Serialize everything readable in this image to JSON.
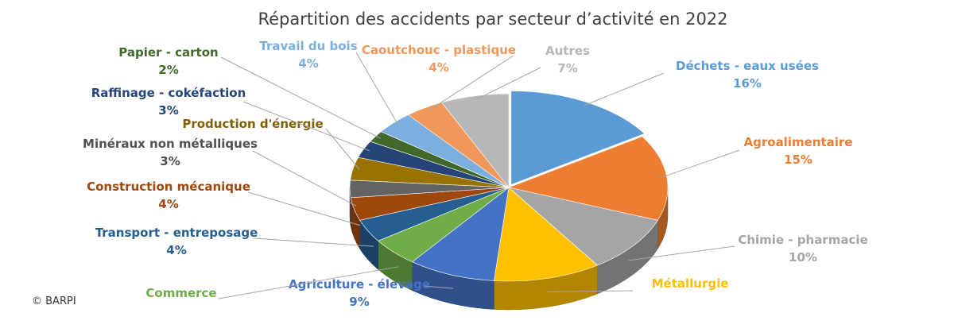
{
  "copyright": "© BARPI",
  "chart_data": {
    "type": "pie",
    "title": "Répartition des accidents par secteur d’activité en 2022",
    "style": "3d-exploded",
    "slices": [
      {
        "label": "Déchets - eaux usées",
        "value": 16,
        "value_label": "16%",
        "color": "#5B9BD5",
        "label_color": "#5B9BD5"
      },
      {
        "label": "Agroalimentaire",
        "value": 15,
        "value_label": "15%",
        "color": "#ED7D31",
        "label_color": "#ED7D31"
      },
      {
        "label": "Chimie - pharmacie",
        "value": 10,
        "value_label": "10%",
        "color": "#A5A5A5",
        "label_color": "#A5A5A5"
      },
      {
        "label": "Métallurgie",
        "value": 11,
        "value_label": "",
        "color": "#FFC000",
        "label_color": "#FFC000"
      },
      {
        "label": "Agriculture - élevage",
        "value": 9,
        "value_label": "9%",
        "color": "#4472C4",
        "label_color": "#4472C4"
      },
      {
        "label": "Commerce",
        "value": 5,
        "value_label": "",
        "color": "#70AD47",
        "label_color": "#70AD47"
      },
      {
        "label": "Transport - entreposage",
        "value": 4,
        "value_label": "4%",
        "color": "#255E91",
        "label_color": "#255E91"
      },
      {
        "label": "Construction mécanique",
        "value": 4,
        "value_label": "4%",
        "color": "#9E480E",
        "label_color": "#9E480E"
      },
      {
        "label": "Minéraux non métalliques",
        "value": 3,
        "value_label": "3%",
        "color": "#636363",
        "label_color": "#505050"
      },
      {
        "label": "Production d'énergie",
        "value": 4,
        "value_label": "",
        "color": "#997300",
        "label_color": "#7F6000"
      },
      {
        "label": "Raffinage - cokéfaction",
        "value": 3,
        "value_label": "3%",
        "color": "#264478",
        "label_color": "#264478"
      },
      {
        "label": "Papier - carton",
        "value": 2,
        "value_label": "2%",
        "color": "#43682B",
        "label_color": "#43682B"
      },
      {
        "label": "Travail du bois",
        "value": 4,
        "value_label": "4%",
        "color": "#7CAFDD",
        "label_color": "#7CAFDD"
      },
      {
        "label": "Caoutchouc - plastique",
        "value": 4,
        "value_label": "4%",
        "color": "#F1975A",
        "label_color": "#F1975A"
      },
      {
        "label": "Autres",
        "value": 7,
        "value_label": "7%",
        "color": "#B7B7B7",
        "label_color": "#B7B7B7"
      }
    ]
  }
}
